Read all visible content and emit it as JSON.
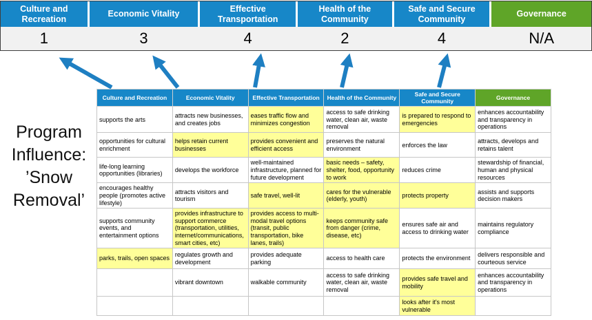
{
  "title": {
    "text": "Program Influence: ’Snow Removal’"
  },
  "colors": {
    "header_blue": "#1787c8",
    "header_green": "#5fa528",
    "highlight_yellow": "#ffff99",
    "arrow_blue": "#1e7fc2",
    "score_row_bg": "#f1f1f1"
  },
  "scoreboard": {
    "columns": [
      {
        "label": "Culture and Recreation",
        "score": "1"
      },
      {
        "label": "Economic Vitality",
        "score": "3"
      },
      {
        "label": "Effective Transportation",
        "score": "4"
      },
      {
        "label": "Health of the Community",
        "score": "2"
      },
      {
        "label": "Safe and Secure Community",
        "score": "4"
      },
      {
        "label": "Governance",
        "score": "N/A",
        "green": true
      }
    ]
  },
  "matrix": {
    "headers": [
      {
        "label": "Culture and Recreation"
      },
      {
        "label": "Economic Vitality"
      },
      {
        "label": "Effective Transportation"
      },
      {
        "label": "Health of the Community"
      },
      {
        "label": "Safe and Secure Community"
      },
      {
        "label": "Governance",
        "green": true
      }
    ],
    "rows": [
      [
        {
          "text": "supports the arts"
        },
        {
          "text": "attracts new businesses, and creates jobs"
        },
        {
          "text": "eases traffic flow and minimizes congestion",
          "highlight": true
        },
        {
          "text": "access to safe drinking water, clean air, waste removal"
        },
        {
          "text": "is prepared to respond to emergencies",
          "highlight": true
        },
        {
          "text": "enhances accountability and transparency in operations"
        }
      ],
      [
        {
          "text": "opportunities for cultural enrichment"
        },
        {
          "text": "helps retain current businesses",
          "highlight": true
        },
        {
          "text": "provides convenient and efficient access",
          "highlight": true
        },
        {
          "text": "preserves the natural environment"
        },
        {
          "text": "enforces the law"
        },
        {
          "text": "attracts, develops and retains talent"
        }
      ],
      [
        {
          "text": "life-long learning opportunities (libraries)"
        },
        {
          "text": "develops the workforce"
        },
        {
          "text": "well-maintained infrastructure, planned for future development"
        },
        {
          "text": "basic needs – safety, shelter, food, opportunity to work",
          "highlight": true
        },
        {
          "text": "reduces crime"
        },
        {
          "text": "stewardship of financial, human and physical resources"
        }
      ],
      [
        {
          "text": "encourages healthy people (promotes active lifestyle)"
        },
        {
          "text": "attracts visitors and tourism"
        },
        {
          "text": "safe travel, well-lit",
          "highlight": true
        },
        {
          "text": "cares for the vulnerable (elderly, youth)",
          "highlight": true
        },
        {
          "text": "protects property",
          "highlight": true
        },
        {
          "text": "assists and supports decision makers"
        }
      ],
      [
        {
          "text": "supports community events, and entertainment options"
        },
        {
          "text": "provides infrastructure to support commerce (transportation, utilities, internet/communications, smart cities, etc)",
          "highlight": true
        },
        {
          "text": "provides access to multi-modal travel options (transit, public transportation, bike lanes, trails)",
          "highlight": true
        },
        {
          "text": "keeps community safe from danger (crime, disease, etc)",
          "highlight": true
        },
        {
          "text": "ensures safe air and access to drinking water"
        },
        {
          "text": "maintains regulatory compliance"
        }
      ],
      [
        {
          "text": "parks, trails, open spaces",
          "highlight": true
        },
        {
          "text": "regulates growth and development"
        },
        {
          "text": "provides adequate parking"
        },
        {
          "text": "access to health care"
        },
        {
          "text": "protects the environment"
        },
        {
          "text": "delivers responsible and courteous service"
        }
      ],
      [
        {
          "text": ""
        },
        {
          "text": "vibrant downtown"
        },
        {
          "text": "walkable community"
        },
        {
          "text": "access to safe drinking water, clean air, waste removal"
        },
        {
          "text": "provides safe travel and mobility",
          "highlight": true
        },
        {
          "text": "enhances accountability and transparency in operations"
        }
      ],
      [
        {
          "text": ""
        },
        {
          "text": ""
        },
        {
          "text": ""
        },
        {
          "text": ""
        },
        {
          "text": "looks after it's most vulnerable",
          "highlight": true
        },
        {
          "text": ""
        }
      ]
    ]
  }
}
